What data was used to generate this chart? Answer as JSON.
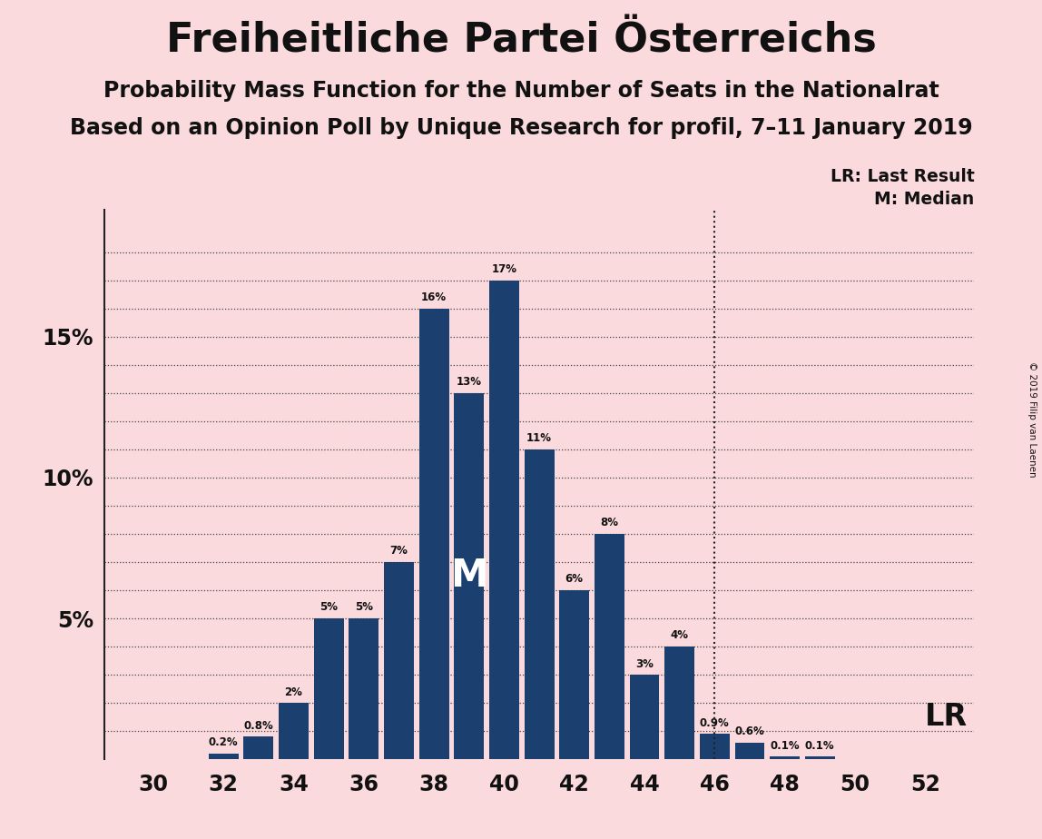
{
  "title": "Freiheitliche Partei Österreichs",
  "subtitle1": "Probability Mass Function for the Number of Seats in the Nationalrat",
  "subtitle2": "Based on an Opinion Poll by Unique Research for profil, 7–11 January 2019",
  "copyright": "© 2019 Filip van Laenen",
  "seats": [
    30,
    31,
    32,
    33,
    34,
    35,
    36,
    37,
    38,
    39,
    40,
    41,
    42,
    43,
    44,
    45,
    46,
    47,
    48,
    49,
    50,
    51,
    52
  ],
  "probabilities": [
    0.0,
    0.0,
    0.2,
    0.8,
    2.0,
    5.0,
    5.0,
    7.0,
    16.0,
    13.0,
    17.0,
    11.0,
    6.0,
    8.0,
    3.0,
    4.0,
    0.9,
    0.6,
    0.1,
    0.1,
    0.0,
    0.0,
    0.0
  ],
  "bar_color": "#1b3f6e",
  "background_color": "#fadadd",
  "median_seat": 39,
  "lr_seat": 46,
  "legend_lr": "LR: Last Result",
  "legend_m": "M: Median",
  "lr_label": "LR",
  "m_label": "M"
}
